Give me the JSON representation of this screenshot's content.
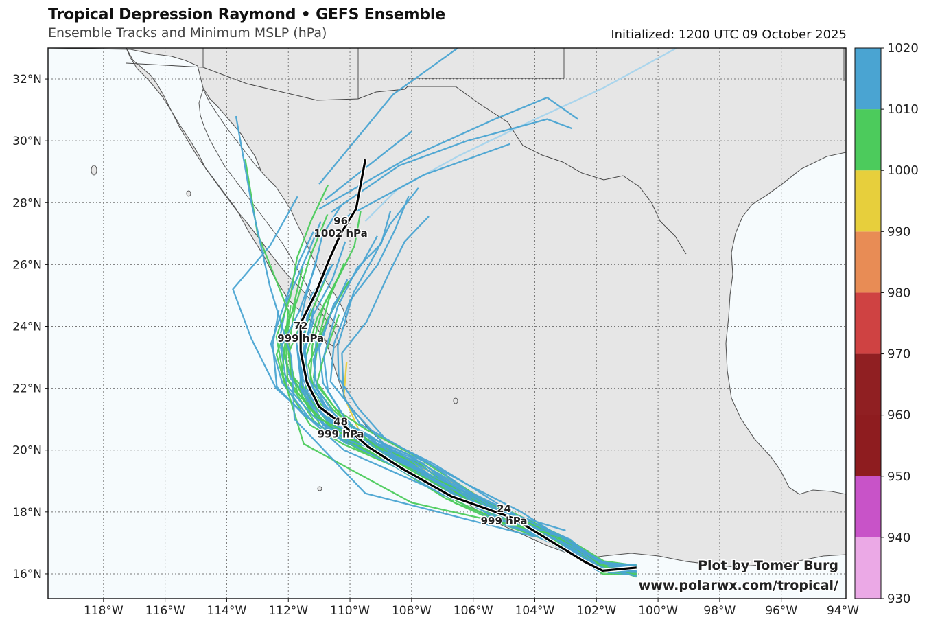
{
  "header": {
    "title": "Tropical Depression Raymond • GEFS Ensemble",
    "subtitle": "Ensemble Tracks and Minimum MSLP (hPa)",
    "initialized": "Initialized: 1200 UTC 09 October 2025"
  },
  "credit": {
    "line1": "Plot by Tomer Burg",
    "line2": "www.polarwx.com/tropical/"
  },
  "map": {
    "extent": {
      "lon": [
        -119.8,
        -93.9
      ],
      "lat": [
        15.2,
        33.0
      ]
    },
    "lon_ticks": [
      "118°W",
      "116°W",
      "114°W",
      "112°W",
      "110°W",
      "108°W",
      "106°W",
      "104°W",
      "102°W",
      "100°W",
      "98°W",
      "96°W",
      "94°W"
    ],
    "lat_ticks": [
      "16°N",
      "18°N",
      "20°N",
      "22°N",
      "24°N",
      "26°N",
      "28°N",
      "30°N",
      "32°N"
    ],
    "colors": {
      "ocean": "#f6fbfd",
      "land": "#e6e6e6",
      "coast": "#555555",
      "grid": "#777777"
    }
  },
  "colorbar": {
    "levels": [
      "930",
      "940",
      "950",
      "960",
      "970",
      "980",
      "990",
      "1000",
      "1010",
      "1020"
    ],
    "colors": [
      "#eba9e6",
      "#c853c8",
      "#8e1c1f",
      "#901f22",
      "#cf4242",
      "#e88c55",
      "#e7cf3c",
      "#4ccb5c",
      "#4aa4d2",
      "#a6d4ec"
    ]
  },
  "mean_track": {
    "annotations": [
      {
        "hour": "24",
        "mslp": "999 hPa"
      },
      {
        "hour": "48",
        "mslp": "999 hPa"
      },
      {
        "hour": "72",
        "mslp": "999 hPa"
      },
      {
        "hour": "96",
        "mslp": "1002 hPa"
      }
    ]
  }
}
